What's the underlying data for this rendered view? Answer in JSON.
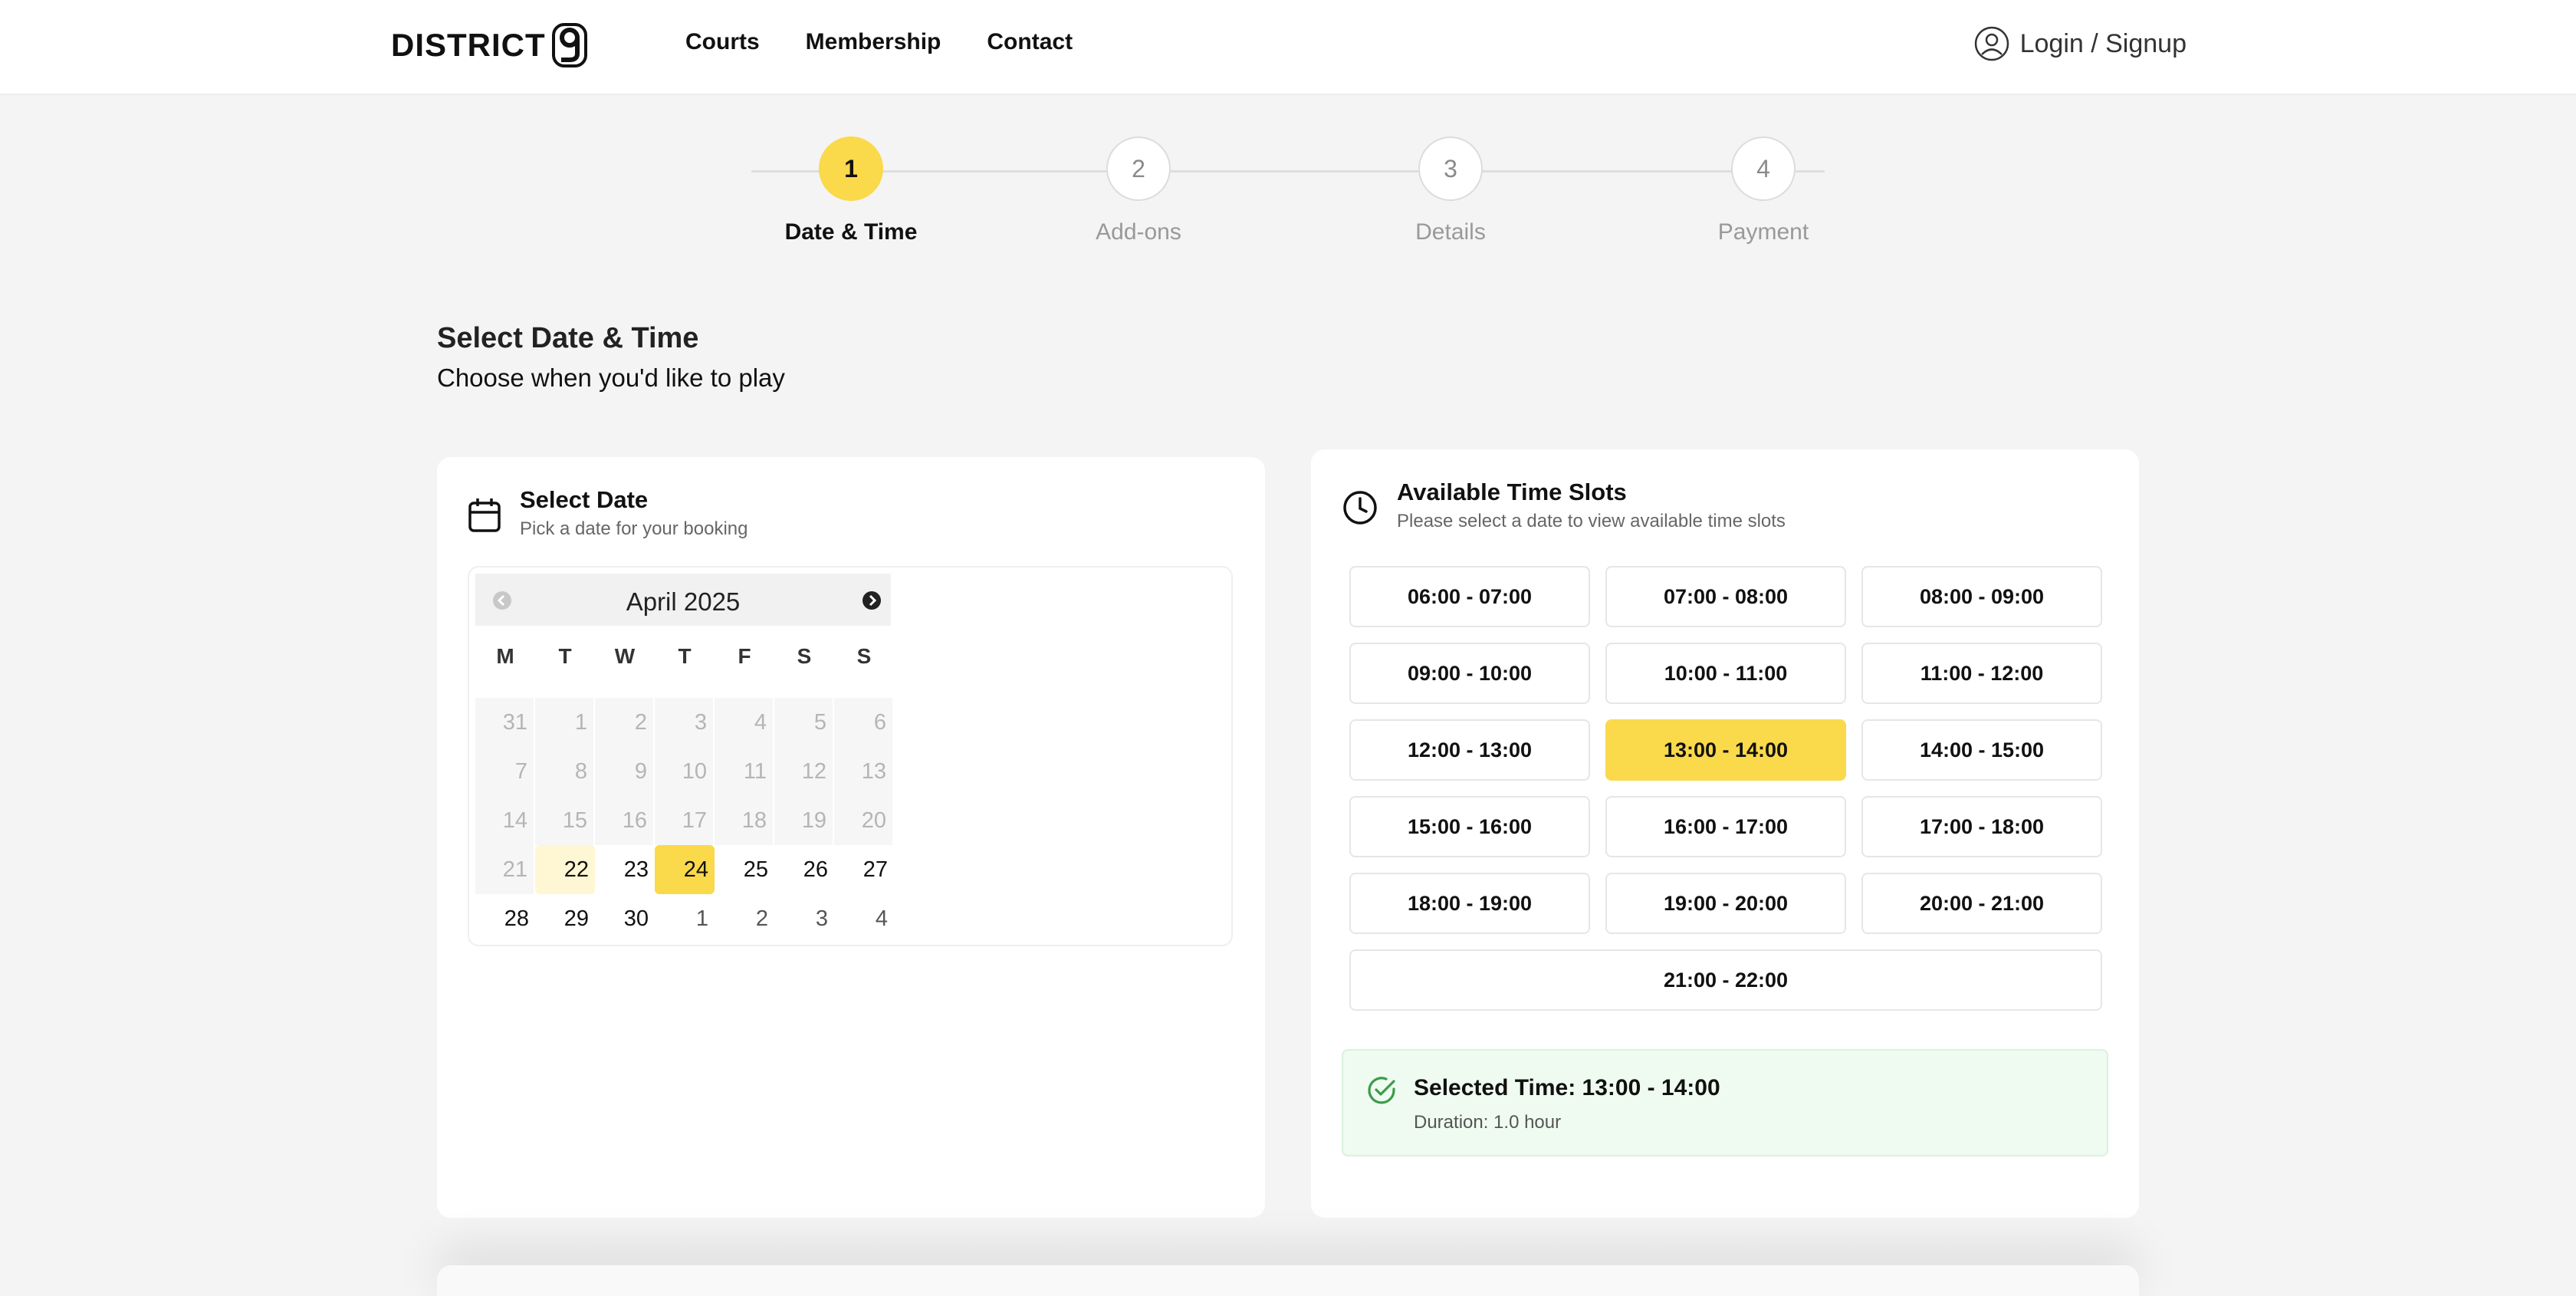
{
  "brand": {
    "name": "DISTRICT",
    "mark": "9"
  },
  "nav": {
    "courts": "Courts",
    "membership": "Membership",
    "contact": "Contact"
  },
  "auth": {
    "label": "Login / Signup",
    "icon": "user-circle-icon"
  },
  "stepper": {
    "steps": [
      {
        "number": "1",
        "label": "Date & Time",
        "active": true
      },
      {
        "number": "2",
        "label": "Add-ons",
        "active": false
      },
      {
        "number": "3",
        "label": "Details",
        "active": false
      },
      {
        "number": "4",
        "label": "Payment",
        "active": false
      }
    ]
  },
  "section": {
    "title": "Select Date & Time",
    "subtitle": "Choose when you'd like to play"
  },
  "date_card": {
    "title": "Select Date",
    "subtitle": "Pick a date for your booking",
    "icon": "calendar-icon",
    "calendar": {
      "month": "April 2025",
      "weekdays": [
        "M",
        "T",
        "W",
        "T",
        "F",
        "S",
        "S"
      ],
      "selected": "24",
      "today": "22",
      "weeks": [
        [
          "31",
          "1",
          "2",
          "3",
          "4",
          "5",
          "6"
        ],
        [
          "7",
          "8",
          "9",
          "10",
          "11",
          "12",
          "13"
        ],
        [
          "14",
          "15",
          "16",
          "17",
          "18",
          "19",
          "20"
        ],
        [
          "21",
          "22",
          "23",
          "24",
          "25",
          "26",
          "27"
        ],
        [
          "28",
          "29",
          "30",
          "1",
          "2",
          "3",
          "4"
        ]
      ]
    }
  },
  "time_card": {
    "title": "Available Time Slots",
    "subtitle": "Please select a date to view available time slots",
    "icon": "clock-icon",
    "selected_slot": "13:00 - 14:00",
    "slots": [
      "06:00 - 07:00",
      "07:00 - 08:00",
      "08:00 - 09:00",
      "09:00 - 10:00",
      "10:00 - 11:00",
      "11:00 - 12:00",
      "12:00 - 13:00",
      "13:00 - 14:00",
      "14:00 - 15:00",
      "15:00 - 16:00",
      "16:00 - 17:00",
      "17:00 - 18:00",
      "18:00 - 19:00",
      "19:00 - 20:00",
      "20:00 - 21:00",
      "21:00 - 22:00"
    ],
    "summary": {
      "title": "Selected Time: 13:00 - 14:00",
      "duration": "Duration: 1.0 hour",
      "icon": "check-circle-icon"
    }
  },
  "colors": {
    "accent": "#fad94b",
    "success_bg": "#effbf0",
    "success_icon": "#3a9c4a"
  }
}
